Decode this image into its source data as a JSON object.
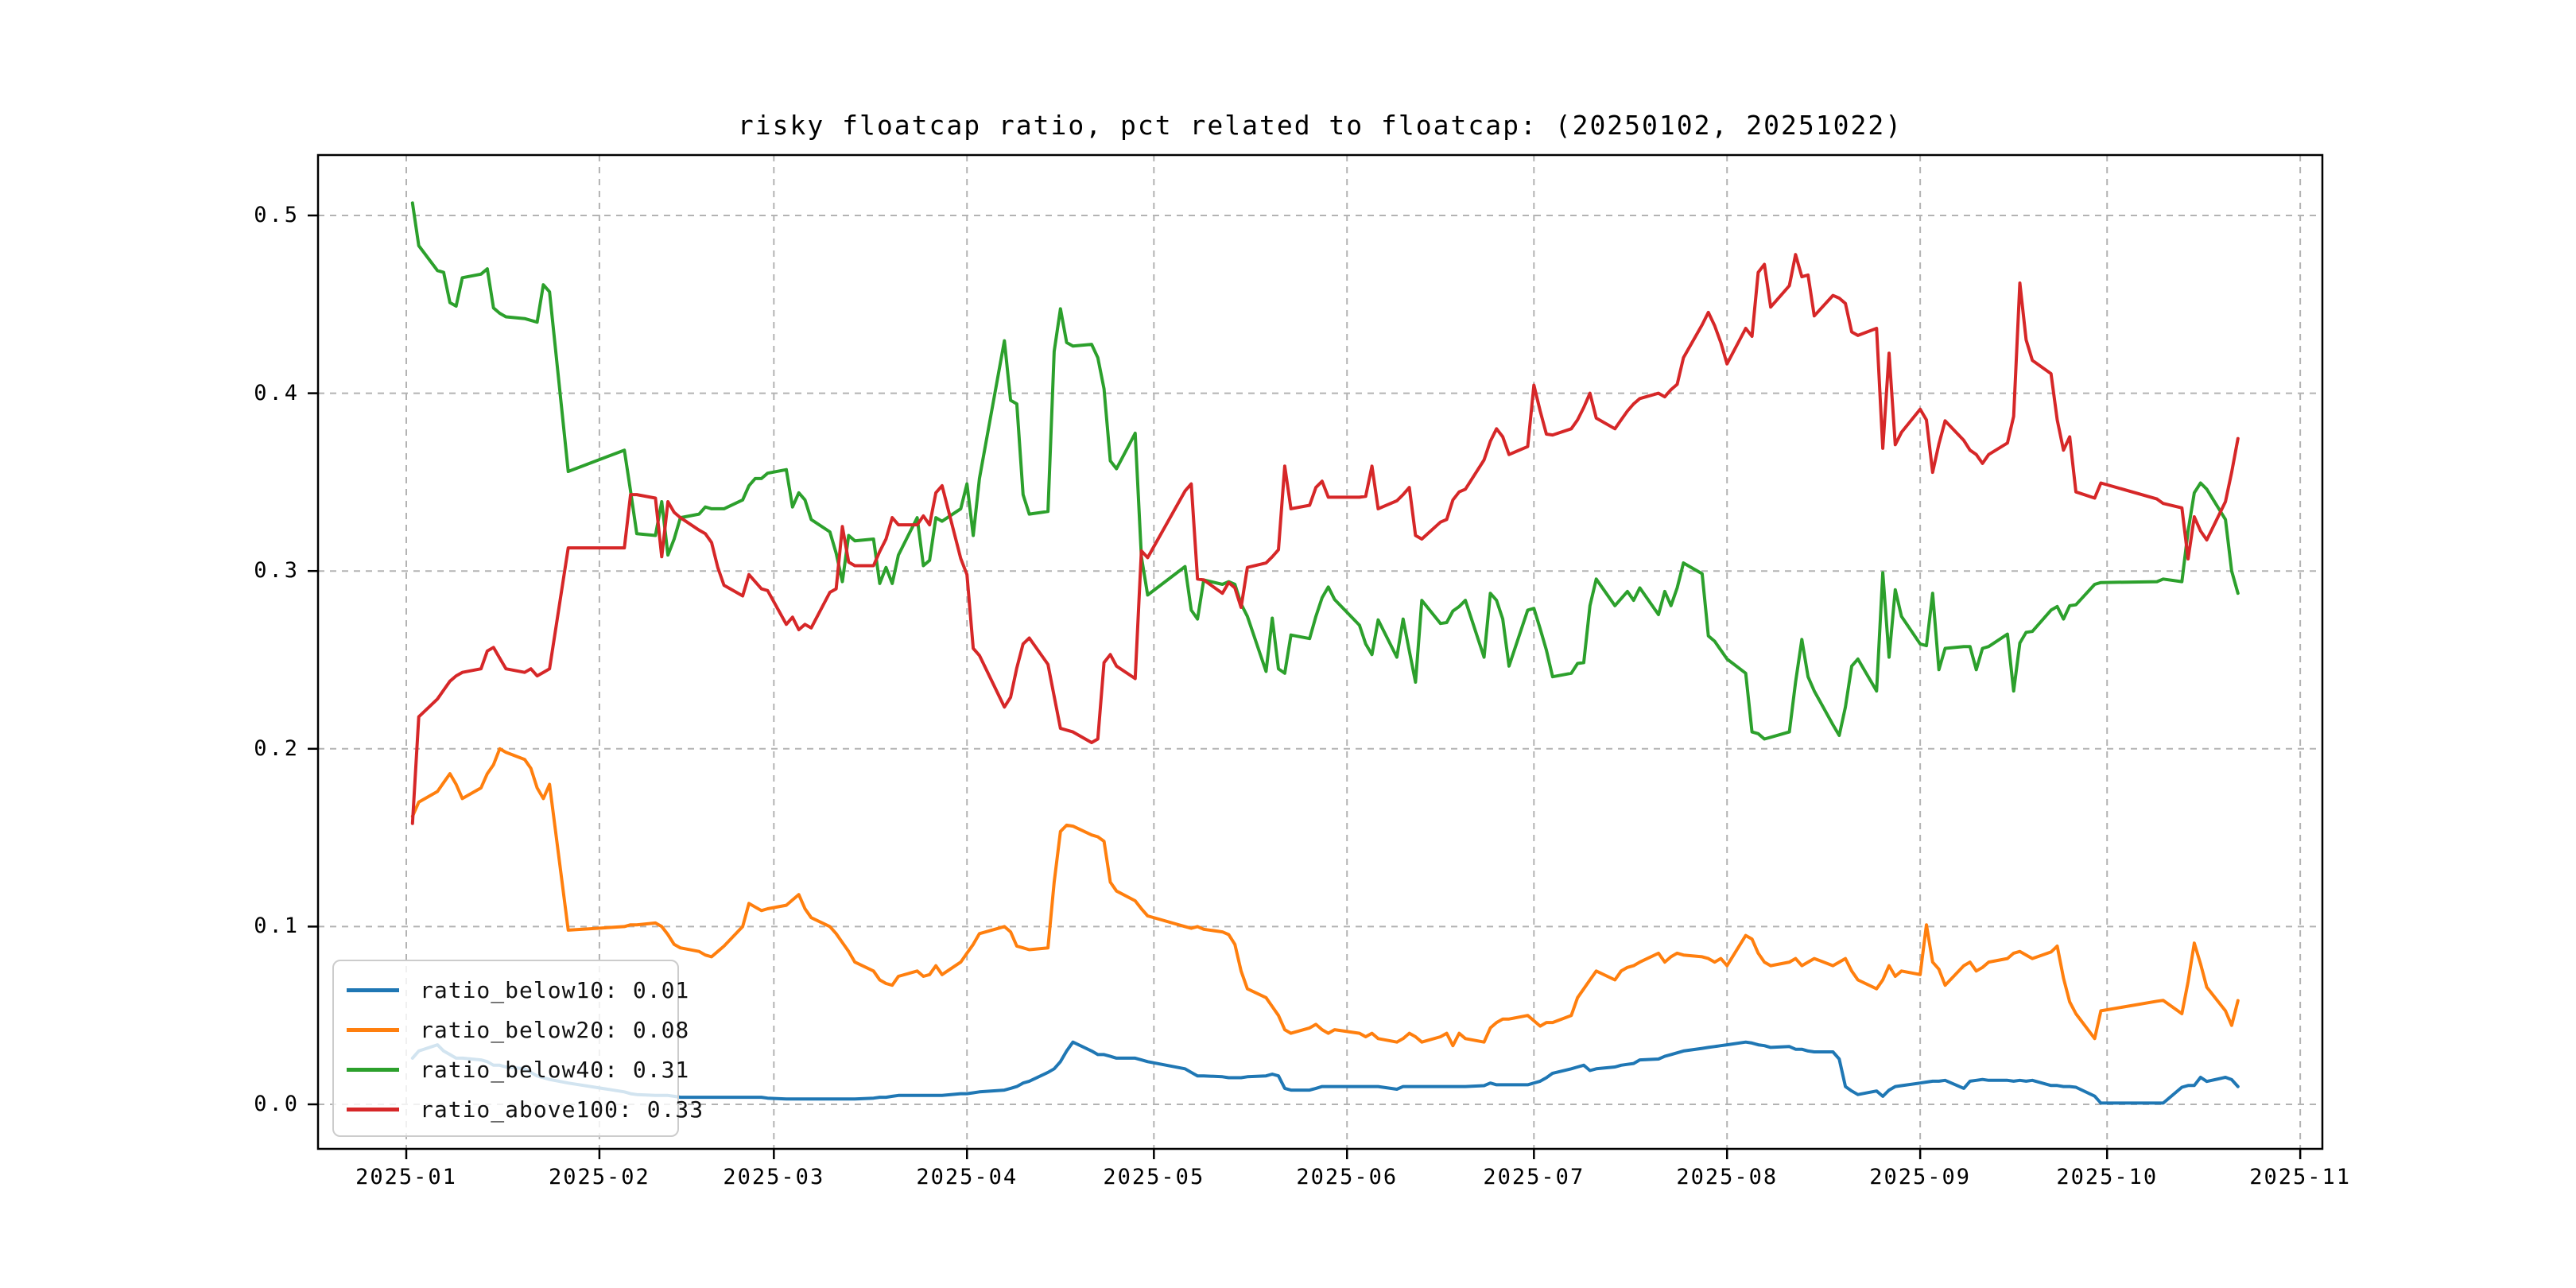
{
  "title": "risky floatcap ratio, pct related to floatcap: (20250102, 20251022)",
  "legend": {
    "position": "lower left",
    "items": [
      {
        "label": "ratio_below10: 0.01",
        "color": "#1f77b4"
      },
      {
        "label": "ratio_below20: 0.08",
        "color": "#ff7f0e"
      },
      {
        "label": "ratio_below40: 0.31",
        "color": "#2ca02c"
      },
      {
        "label": "ratio_above100: 0.33",
        "color": "#d62728"
      }
    ]
  },
  "chart_data": {
    "type": "line",
    "title": "risky floatcap ratio, pct related to floatcap: (20250102, 20251022)",
    "xlabel": "",
    "ylabel": "",
    "grid": true,
    "ylim": [
      -0.025,
      0.534
    ],
    "y_ticks": [
      0.0,
      0.1,
      0.2,
      0.3,
      0.4,
      0.5
    ],
    "y_tick_labels": [
      "0.0",
      "0.1",
      "0.2",
      "0.3",
      "0.4",
      "0.5"
    ],
    "x_tick_labels": [
      "2025-01",
      "2025-02",
      "2025-03",
      "2025-04",
      "2025-05",
      "2025-06",
      "2025-07",
      "2025-08",
      "2025-09",
      "2025-10",
      "2025-11"
    ],
    "date_range_shown": [
      "20250102",
      "20251022"
    ],
    "dates": [
      "01-02",
      "01-03",
      "01-06",
      "01-07",
      "01-08",
      "01-09",
      "01-10",
      "01-13",
      "01-14",
      "01-15",
      "01-16",
      "01-17",
      "01-20",
      "01-21",
      "01-22",
      "01-23",
      "01-24",
      "01-27",
      "02-05",
      "02-06",
      "02-07",
      "02-10",
      "02-11",
      "02-12",
      "02-13",
      "02-14",
      "02-17",
      "02-18",
      "02-19",
      "02-20",
      "02-21",
      "02-24",
      "02-25",
      "02-26",
      "02-27",
      "02-28",
      "03-03",
      "03-04",
      "03-05",
      "03-06",
      "03-07",
      "03-10",
      "03-11",
      "03-12",
      "03-13",
      "03-14",
      "03-17",
      "03-18",
      "03-19",
      "03-20",
      "03-21",
      "03-24",
      "03-25",
      "03-26",
      "03-27",
      "03-28",
      "03-31",
      "04-01",
      "04-02",
      "04-03",
      "04-07",
      "04-08",
      "04-09",
      "04-10",
      "04-11",
      "04-14",
      "04-15",
      "04-16",
      "04-17",
      "04-18",
      "04-21",
      "04-22",
      "04-23",
      "04-24",
      "04-25",
      "04-28",
      "04-29",
      "04-30",
      "05-06",
      "05-07",
      "05-08",
      "05-09",
      "05-12",
      "05-13",
      "05-14",
      "05-15",
      "05-16",
      "05-19",
      "05-20",
      "05-21",
      "05-22",
      "05-23",
      "05-26",
      "05-27",
      "05-28",
      "05-29",
      "05-30",
      "06-03",
      "06-04",
      "06-05",
      "06-06",
      "06-09",
      "06-10",
      "06-11",
      "06-12",
      "06-13",
      "06-16",
      "06-17",
      "06-18",
      "06-19",
      "06-20",
      "06-23",
      "06-24",
      "06-25",
      "06-26",
      "06-27",
      "06-30",
      "07-01",
      "07-02",
      "07-03",
      "07-04",
      "07-07",
      "07-08",
      "07-09",
      "07-10",
      "07-11",
      "07-14",
      "07-15",
      "07-16",
      "07-17",
      "07-18",
      "07-21",
      "07-22",
      "07-23",
      "07-24",
      "07-25",
      "07-28",
      "07-29",
      "07-30",
      "07-31",
      "08-01",
      "08-04",
      "08-05",
      "08-06",
      "08-07",
      "08-08",
      "08-11",
      "08-12",
      "08-13",
      "08-14",
      "08-15",
      "08-18",
      "08-19",
      "08-20",
      "08-21",
      "08-22",
      "08-25",
      "08-26",
      "08-27",
      "08-28",
      "08-29",
      "09-01",
      "09-02",
      "09-03",
      "09-04",
      "09-05",
      "09-08",
      "09-09",
      "09-10",
      "09-11",
      "09-12",
      "09-15",
      "09-16",
      "09-17",
      "09-18",
      "09-19",
      "09-22",
      "09-23",
      "09-24",
      "09-25",
      "09-26",
      "09-29",
      "09-30",
      "10-09",
      "10-10",
      "10-13",
      "10-14",
      "10-15",
      "10-16",
      "10-17",
      "10-20",
      "10-21",
      "10-22"
    ],
    "series": [
      {
        "name": "ratio_below10",
        "legend_label": "ratio_below10: 0.01",
        "color": "#1f77b4",
        "values": [
          0.026,
          0.03,
          0.0335,
          0.03,
          0.028,
          0.026,
          0.026,
          0.025,
          0.024,
          0.022,
          0.022,
          0.021,
          0.02,
          0.018,
          0.016,
          0.015,
          0.014,
          0.012,
          0.007,
          0.006,
          0.0055,
          0.005,
          0.005,
          0.005,
          0.0045,
          0.004,
          0.004,
          0.004,
          0.004,
          0.004,
          0.004,
          0.004,
          0.004,
          0.004,
          0.004,
          0.0035,
          0.003,
          0.003,
          0.003,
          0.003,
          0.003,
          0.003,
          0.003,
          0.003,
          0.003,
          0.003,
          0.0035,
          0.004,
          0.004,
          0.0045,
          0.005,
          0.005,
          0.005,
          0.005,
          0.005,
          0.005,
          0.006,
          0.006,
          0.0065,
          0.007,
          0.008,
          0.009,
          0.01,
          0.012,
          0.013,
          0.018,
          0.02,
          0.024,
          0.03,
          0.035,
          0.03,
          0.028,
          0.028,
          0.027,
          0.026,
          0.026,
          0.025,
          0.024,
          0.02,
          0.018,
          0.016,
          0.016,
          0.0155,
          0.015,
          0.015,
          0.015,
          0.0155,
          0.016,
          0.017,
          0.016,
          0.009,
          0.008,
          0.008,
          0.009,
          0.01,
          0.01,
          0.01,
          0.01,
          0.01,
          0.01,
          0.01,
          0.0085,
          0.01,
          0.01,
          0.01,
          0.01,
          0.01,
          0.01,
          0.01,
          0.01,
          0.01,
          0.0105,
          0.012,
          0.011,
          0.011,
          0.011,
          0.011,
          0.012,
          0.013,
          0.015,
          0.0175,
          0.02,
          0.021,
          0.022,
          0.019,
          0.02,
          0.021,
          0.022,
          0.0225,
          0.023,
          0.025,
          0.0255,
          0.027,
          0.028,
          0.029,
          0.03,
          0.0315,
          0.032,
          0.0325,
          0.033,
          0.0335,
          0.035,
          0.0345,
          0.0335,
          0.033,
          0.032,
          0.0325,
          0.031,
          0.031,
          0.03,
          0.0295,
          0.0295,
          0.0255,
          0.01,
          0.0075,
          0.0055,
          0.0075,
          0.0045,
          0.008,
          0.01,
          0.0105,
          0.012,
          0.0125,
          0.013,
          0.013,
          0.0135,
          0.009,
          0.013,
          0.0135,
          0.014,
          0.0135,
          0.0135,
          0.013,
          0.0135,
          0.013,
          0.0135,
          0.0106,
          0.0106,
          0.01,
          0.01,
          0.0096,
          0.0046,
          0.0007,
          0.0007,
          0.0007,
          0.0096,
          0.0106,
          0.0106,
          0.0152,
          0.0129,
          0.0152,
          0.0139,
          0.01
        ]
      },
      {
        "name": "ratio_below20",
        "legend_label": "ratio_below20: 0.08",
        "color": "#ff7f0e",
        "values": [
          0.162,
          0.17,
          0.176,
          0.181,
          0.186,
          0.18,
          0.172,
          0.178,
          0.186,
          0.191,
          0.2,
          0.198,
          0.194,
          0.189,
          0.178,
          0.172,
          0.18,
          0.098,
          0.1,
          0.101,
          0.101,
          0.102,
          0.1,
          0.0955,
          0.09,
          0.088,
          0.086,
          0.084,
          0.083,
          0.086,
          0.089,
          0.1,
          0.113,
          0.111,
          0.109,
          0.11,
          0.112,
          0.115,
          0.118,
          0.11,
          0.105,
          0.1,
          0.096,
          0.091,
          0.086,
          0.08,
          0.075,
          0.07,
          0.068,
          0.067,
          0.072,
          0.075,
          0.072,
          0.073,
          0.078,
          0.073,
          0.08,
          0.085,
          0.09,
          0.096,
          0.1,
          0.097,
          0.089,
          0.088,
          0.087,
          0.088,
          0.125,
          0.1535,
          0.157,
          0.1565,
          0.1515,
          0.1505,
          0.148,
          0.125,
          0.12,
          0.1145,
          0.11,
          0.106,
          0.1,
          0.099,
          0.1,
          0.0985,
          0.097,
          0.0955,
          0.09,
          0.075,
          0.065,
          0.06,
          0.055,
          0.05,
          0.042,
          0.04,
          0.043,
          0.045,
          0.042,
          0.04,
          0.042,
          0.04,
          0.038,
          0.04,
          0.037,
          0.035,
          0.037,
          0.04,
          0.038,
          0.035,
          0.038,
          0.04,
          0.033,
          0.04,
          0.037,
          0.035,
          0.043,
          0.046,
          0.048,
          0.048,
          0.05,
          0.047,
          0.044,
          0.046,
          0.046,
          0.05,
          0.06,
          0.065,
          0.07,
          0.075,
          0.07,
          0.075,
          0.077,
          0.078,
          0.08,
          0.085,
          0.08,
          0.083,
          0.085,
          0.084,
          0.083,
          0.082,
          0.08,
          0.082,
          0.078,
          0.095,
          0.093,
          0.085,
          0.08,
          0.078,
          0.08,
          0.082,
          0.078,
          0.08,
          0.082,
          0.078,
          0.08,
          0.082,
          0.075,
          0.07,
          0.065,
          0.07,
          0.078,
          0.072,
          0.075,
          0.073,
          0.101,
          0.08,
          0.076,
          0.067,
          0.078,
          0.08,
          0.075,
          0.077,
          0.08,
          0.082,
          0.085,
          0.086,
          0.084,
          0.082,
          0.0857,
          0.089,
          0.071,
          0.0576,
          0.051,
          0.037,
          0.0526,
          0.058,
          0.0585,
          0.051,
          0.069,
          0.0907,
          0.079,
          0.0659,
          0.0526,
          0.0444,
          0.0583
        ]
      },
      {
        "name": "ratio_below40",
        "legend_label": "ratio_below40: 0.31",
        "color": "#2ca02c",
        "values": [
          0.507,
          0.483,
          0.469,
          0.468,
          0.451,
          0.449,
          0.465,
          0.467,
          0.47,
          0.448,
          0.445,
          0.443,
          0.442,
          0.441,
          0.44,
          0.461,
          0.457,
          0.356,
          0.368,
          0.345,
          0.321,
          0.32,
          0.339,
          0.309,
          0.318,
          0.33,
          0.332,
          0.336,
          0.335,
          0.335,
          0.335,
          0.34,
          0.348,
          0.352,
          0.352,
          0.355,
          0.357,
          0.336,
          0.344,
          0.34,
          0.329,
          0.322,
          0.31,
          0.294,
          0.32,
          0.317,
          0.318,
          0.293,
          0.302,
          0.293,
          0.309,
          0.33,
          0.303,
          0.306,
          0.33,
          0.328,
          0.335,
          0.349,
          0.32,
          0.352,
          0.4295,
          0.396,
          0.394,
          0.343,
          0.332,
          0.3335,
          0.4235,
          0.4475,
          0.4285,
          0.4265,
          0.4275,
          0.42,
          0.4025,
          0.362,
          0.3575,
          0.3775,
          0.308,
          0.2865,
          0.3025,
          0.278,
          0.273,
          0.295,
          0.2925,
          0.294,
          0.2925,
          0.2815,
          0.2745,
          0.2435,
          0.2735,
          0.245,
          0.2425,
          0.264,
          0.262,
          0.2745,
          0.285,
          0.291,
          0.284,
          0.2695,
          0.259,
          0.253,
          0.2725,
          0.2515,
          0.273,
          0.255,
          0.2375,
          0.2835,
          0.2705,
          0.271,
          0.2775,
          0.28,
          0.2835,
          0.2515,
          0.2875,
          0.2835,
          0.273,
          0.2465,
          0.278,
          0.279,
          0.2675,
          0.2555,
          0.2405,
          0.2425,
          0.248,
          0.2485,
          0.2805,
          0.2955,
          0.2805,
          0.2845,
          0.2885,
          0.2835,
          0.2905,
          0.2755,
          0.2885,
          0.2805,
          0.2905,
          0.3045,
          0.2985,
          0.2635,
          0.2605,
          0.2555,
          0.2505,
          0.2425,
          0.2095,
          0.2085,
          0.2055,
          0.2065,
          0.2095,
          0.2375,
          0.2615,
          0.2405,
          0.2325,
          0.2135,
          0.2075,
          0.2235,
          0.2465,
          0.2505,
          0.2325,
          0.299,
          0.2515,
          0.2895,
          0.2745,
          0.259,
          0.258,
          0.2875,
          0.2445,
          0.2565,
          0.2575,
          0.2575,
          0.2445,
          0.2565,
          0.2575,
          0.2645,
          0.2325,
          0.2595,
          0.2655,
          0.266,
          0.278,
          0.28,
          0.273,
          0.2805,
          0.281,
          0.2925,
          0.2935,
          0.294,
          0.2955,
          0.294,
          0.3225,
          0.344,
          0.3495,
          0.346,
          0.329,
          0.3,
          0.2875
        ]
      },
      {
        "name": "ratio_above100",
        "legend_label": "ratio_above100: 0.33",
        "color": "#d62728",
        "values": [
          0.158,
          0.218,
          0.228,
          0.233,
          0.238,
          0.241,
          0.243,
          0.245,
          0.255,
          0.257,
          0.251,
          0.245,
          0.243,
          0.245,
          0.241,
          0.243,
          0.245,
          0.313,
          0.313,
          0.343,
          0.343,
          0.341,
          0.308,
          0.339,
          0.333,
          0.33,
          0.323,
          0.321,
          0.316,
          0.302,
          0.292,
          0.286,
          0.298,
          0.294,
          0.29,
          0.289,
          0.27,
          0.274,
          0.267,
          0.27,
          0.268,
          0.288,
          0.29,
          0.325,
          0.305,
          0.303,
          0.303,
          0.311,
          0.318,
          0.33,
          0.326,
          0.326,
          0.331,
          0.326,
          0.344,
          0.348,
          0.307,
          0.298,
          0.2565,
          0.2525,
          0.2235,
          0.229,
          0.2455,
          0.259,
          0.2623,
          0.2475,
          0.2295,
          0.2115,
          0.2105,
          0.2095,
          0.2035,
          0.2055,
          0.2485,
          0.253,
          0.2465,
          0.2395,
          0.3113,
          0.3075,
          0.345,
          0.349,
          0.2955,
          0.295,
          0.2875,
          0.2935,
          0.2905,
          0.2795,
          0.302,
          0.3045,
          0.308,
          0.312,
          0.359,
          0.335,
          0.337,
          0.347,
          0.3505,
          0.3415,
          0.3415,
          0.3415,
          0.342,
          0.359,
          0.335,
          0.3395,
          0.343,
          0.347,
          0.32,
          0.318,
          0.3275,
          0.329,
          0.34,
          0.3445,
          0.346,
          0.3625,
          0.373,
          0.38,
          0.3755,
          0.3655,
          0.37,
          0.4045,
          0.39,
          0.377,
          0.3765,
          0.38,
          0.385,
          0.392,
          0.4,
          0.386,
          0.38,
          0.385,
          0.39,
          0.394,
          0.397,
          0.4,
          0.398,
          0.402,
          0.405,
          0.42,
          0.4385,
          0.4455,
          0.438,
          0.4285,
          0.4165,
          0.4365,
          0.432,
          0.468,
          0.4725,
          0.4485,
          0.4605,
          0.478,
          0.4655,
          0.4665,
          0.4435,
          0.455,
          0.4535,
          0.4505,
          0.4345,
          0.4325,
          0.4365,
          0.369,
          0.4225,
          0.371,
          0.378,
          0.391,
          0.385,
          0.3555,
          0.3715,
          0.3845,
          0.3735,
          0.368,
          0.3655,
          0.3605,
          0.3655,
          0.372,
          0.387,
          0.462,
          0.43,
          0.4185,
          0.411,
          0.385,
          0.368,
          0.3755,
          0.3445,
          0.341,
          0.3495,
          0.3405,
          0.338,
          0.3355,
          0.3068,
          0.3305,
          0.3225,
          0.3175,
          0.339,
          0.3555,
          0.3745
        ]
      }
    ]
  }
}
